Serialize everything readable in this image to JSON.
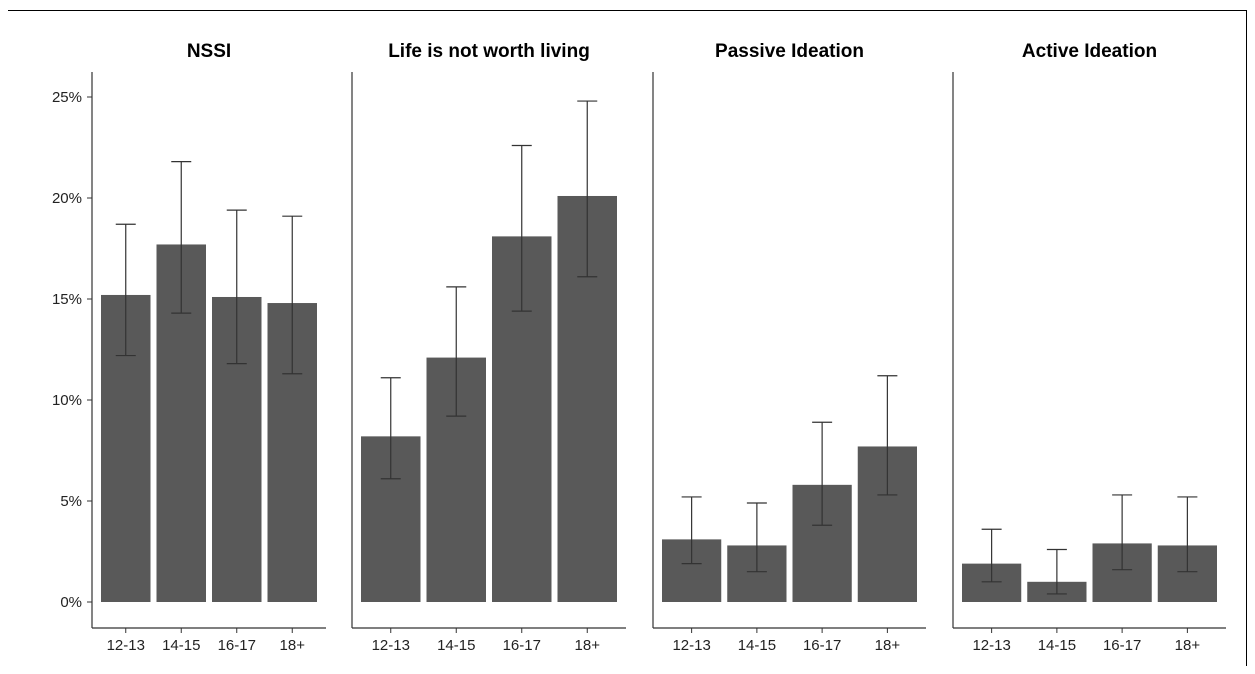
{
  "chart_data": {
    "type": "bar",
    "categories": [
      "12-13",
      "14-15",
      "16-17",
      "18+"
    ],
    "y_ticks": [
      "0%",
      "5%",
      "10%",
      "15%",
      "20%",
      "25%"
    ],
    "y_tick_values": [
      0,
      5,
      10,
      15,
      20,
      25
    ],
    "ylim": [
      0,
      26.3
    ],
    "ylabel": "",
    "xlabel": "",
    "grid": false,
    "bar_color": "#595959",
    "error_bar_color": "#333333",
    "panels": [
      {
        "title": "NSSI",
        "values": [
          15.2,
          17.7,
          15.1,
          14.8
        ],
        "lower": [
          12.2,
          14.3,
          11.8,
          11.3
        ],
        "upper": [
          18.7,
          21.8,
          19.4,
          19.1
        ]
      },
      {
        "title": "Life is not worth living",
        "values": [
          8.2,
          12.1,
          18.1,
          20.1
        ],
        "lower": [
          6.1,
          9.2,
          14.4,
          16.1
        ],
        "upper": [
          11.1,
          15.6,
          22.6,
          24.8
        ]
      },
      {
        "title": "Passive Ideation",
        "values": [
          3.1,
          2.8,
          5.8,
          7.7
        ],
        "lower": [
          1.9,
          1.5,
          3.8,
          5.3
        ],
        "upper": [
          5.2,
          4.9,
          8.9,
          11.2
        ]
      },
      {
        "title": "Active Ideation",
        "values": [
          1.9,
          1.0,
          2.9,
          2.8
        ],
        "lower": [
          1.0,
          0.4,
          1.6,
          1.5
        ],
        "upper": [
          3.6,
          2.6,
          5.3,
          5.2
        ]
      }
    ]
  }
}
